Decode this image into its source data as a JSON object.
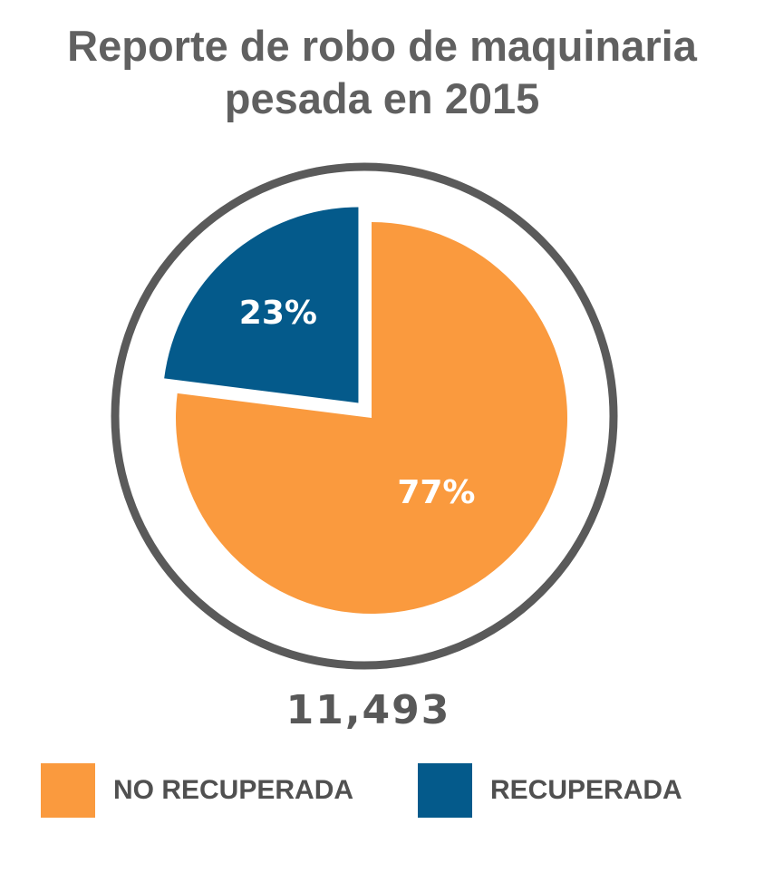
{
  "chart_data": {
    "type": "pie",
    "title_lines": [
      "Reporte de robo de maquinaria",
      "pesada en 2015"
    ],
    "slices": [
      {
        "name": "NO RECUPERADA",
        "value": 77,
        "label": "77%",
        "color": "#FA9A3E"
      },
      {
        "name": "RECUPERADA",
        "value": 23,
        "label": "23%",
        "color": "#045A8B",
        "exploded": true
      }
    ],
    "total_label": "11,493",
    "ring_color": "#5A5A5A",
    "legend_position": "bottom"
  }
}
